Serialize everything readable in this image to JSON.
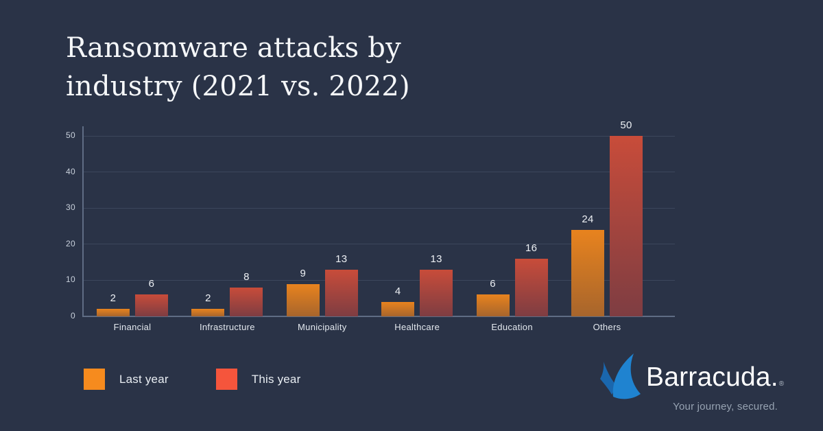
{
  "title": {
    "line1": "Ransomware attacks by",
    "line2": "industry (2021 vs. 2022)"
  },
  "chart_data": {
    "type": "bar",
    "title": "Ransomware attacks by industry (2021 vs. 2022)",
    "categories": [
      "Financial",
      "Infrastructure",
      "Municipality",
      "Healthcare",
      "Education",
      "Others"
    ],
    "series": [
      {
        "name": "Last year",
        "values": [
          2,
          2,
          9,
          4,
          6,
          24
        ],
        "legend_color": "#f68b1e",
        "bar_gradient_top": "#e8831e",
        "bar_gradient_bottom": "#a7652c"
      },
      {
        "name": "This year",
        "values": [
          6,
          8,
          13,
          13,
          16,
          50
        ],
        "legend_color": "#f5553c",
        "bar_gradient_top": "#c84c3a",
        "bar_gradient_bottom": "#7e3d42"
      }
    ],
    "yticks": [
      0,
      10,
      20,
      30,
      40,
      50
    ],
    "ylim": [
      0,
      50
    ],
    "xlabel": "",
    "ylabel": "",
    "grid": true,
    "legend_position": "bottom-left",
    "value_labels": true
  },
  "branding": {
    "wordmark": "Barracuda.",
    "registered": "®",
    "tagline": "Your journey, secured.",
    "fin_small_color": "#1a67ae",
    "fin_large_color": "#1f83d0"
  },
  "colors": {
    "background": "#2a3347",
    "gridline": "#3c475c",
    "axis": "#5f6d85",
    "tick_text": "#c9d1dc",
    "value_text": "#edf0f4",
    "category_text": "#e3e8ee",
    "title_text": "#f5f7f9",
    "legend_text": "#e9eef3",
    "tagline_text": "#97a3b2"
  }
}
